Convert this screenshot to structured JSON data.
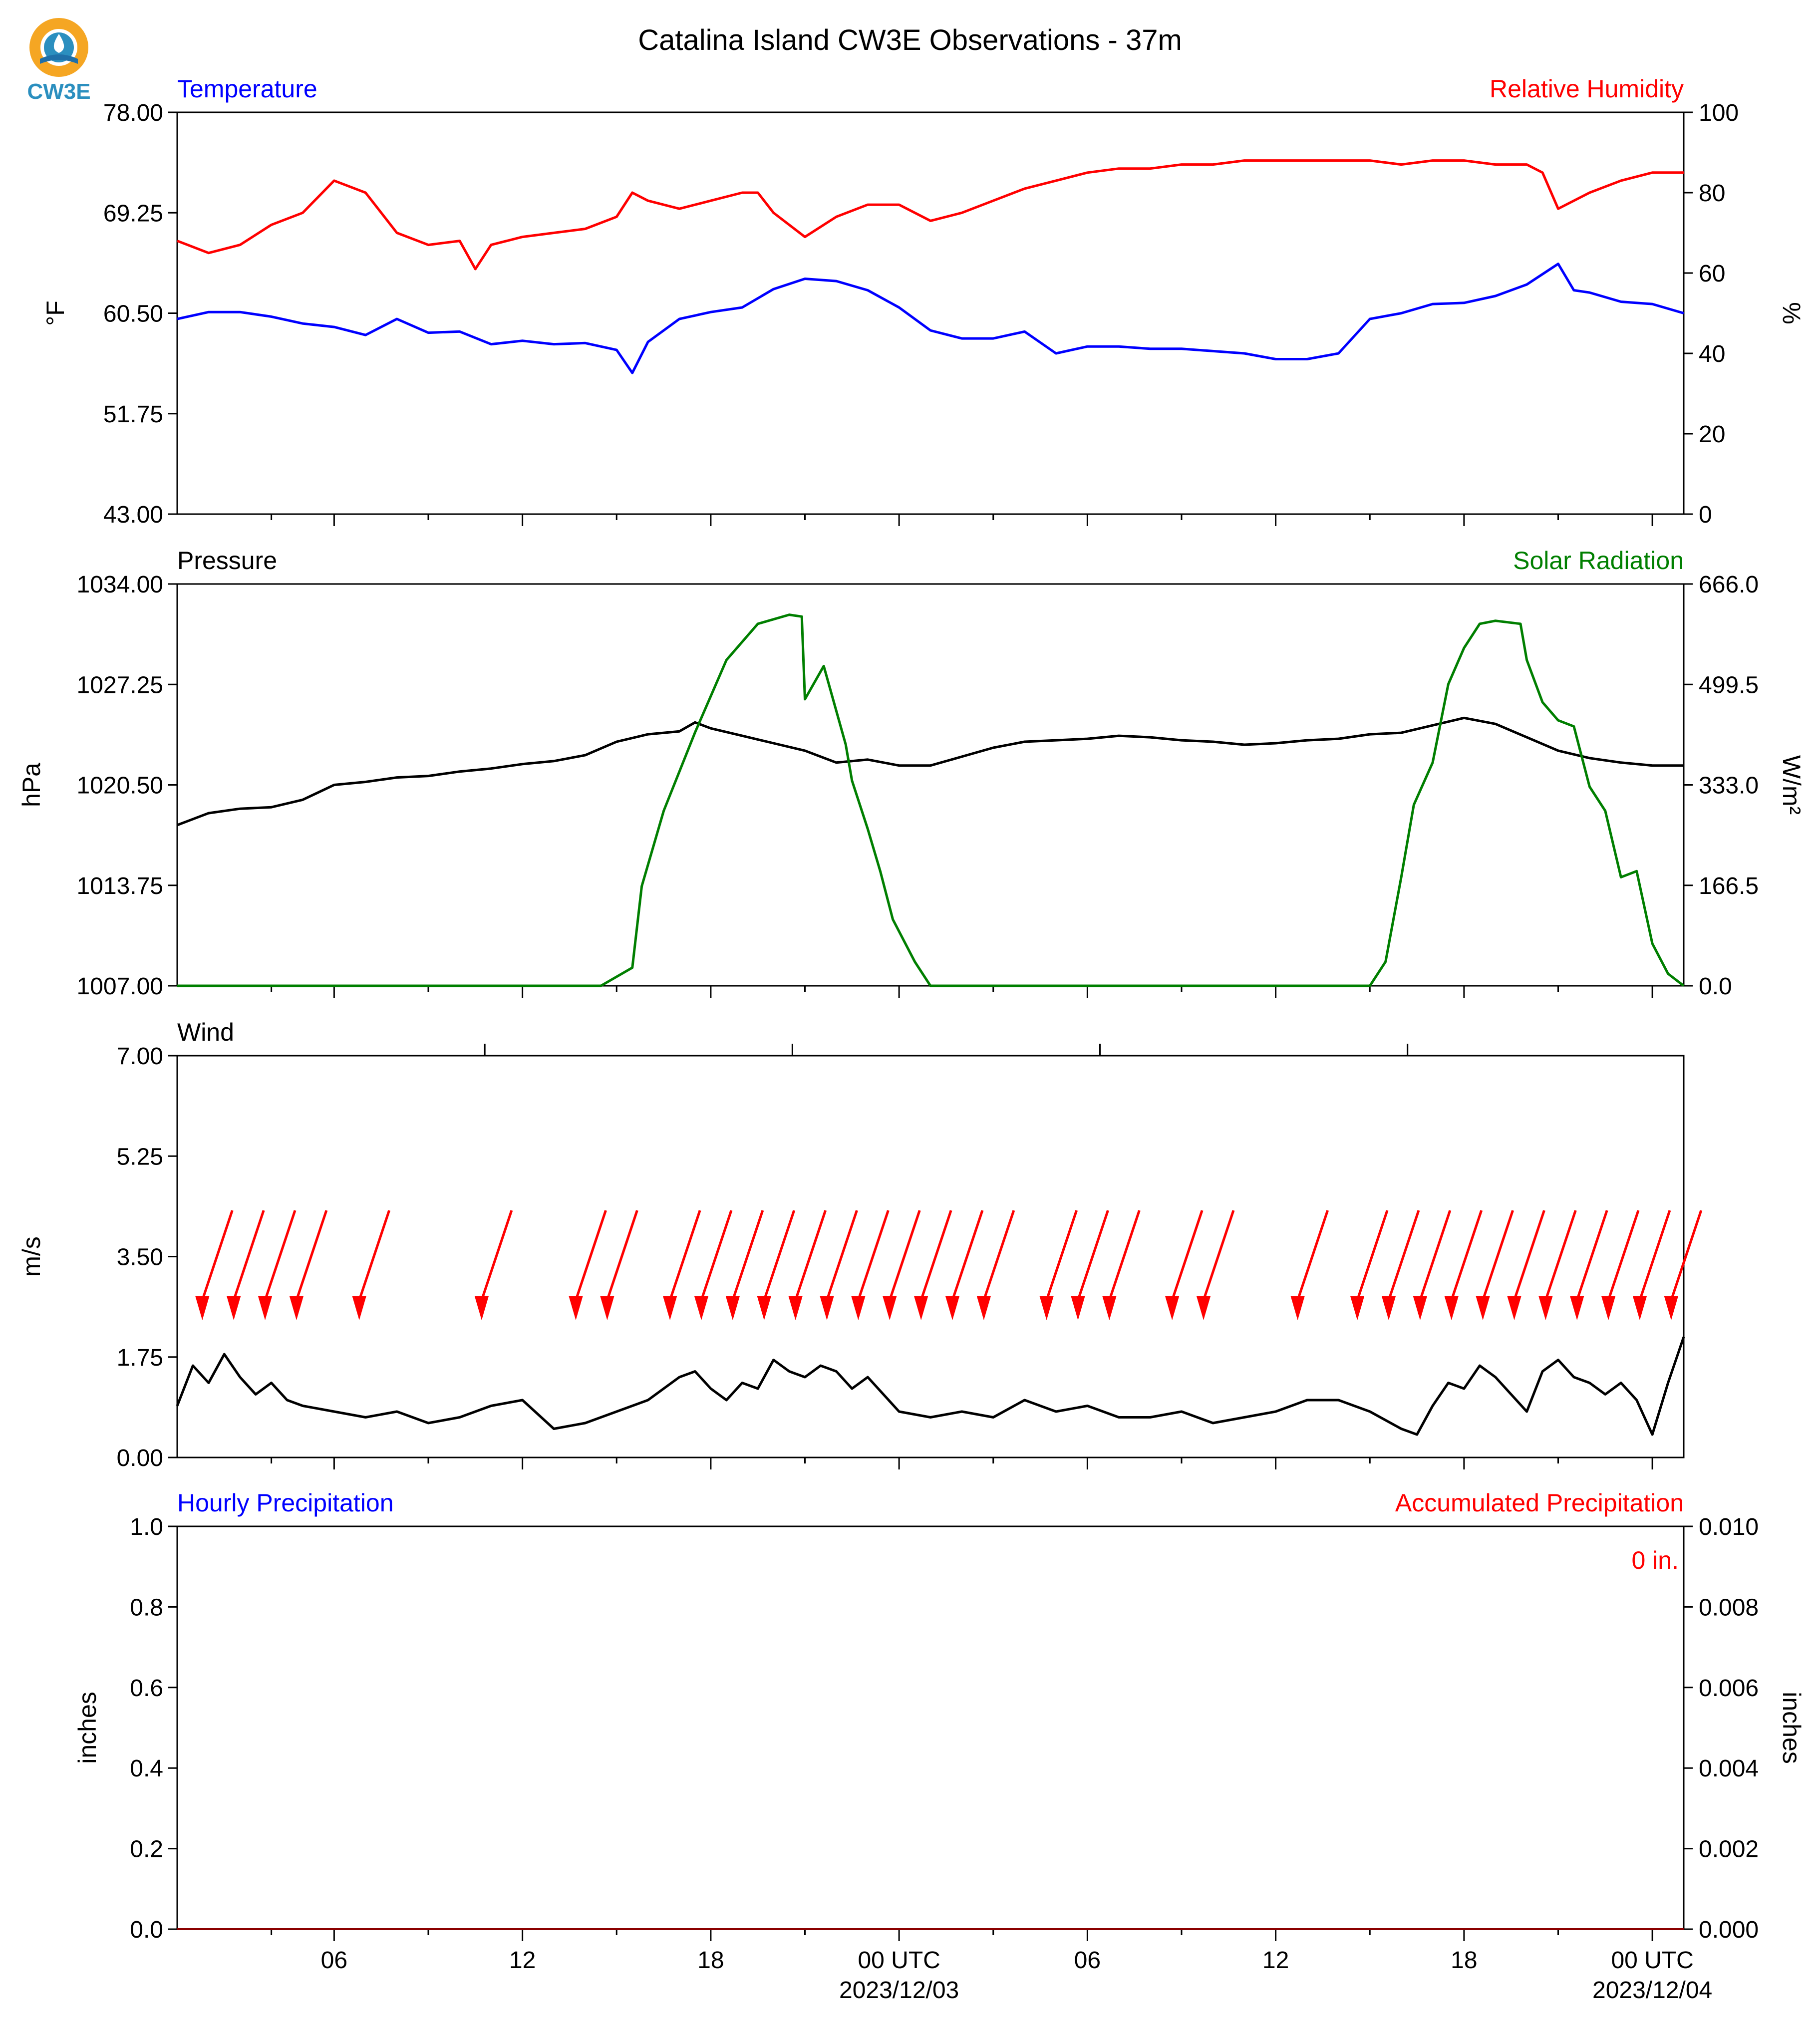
{
  "title": "Catalina Island CW3E Observations - 37m",
  "logo": {
    "text": "CW3E",
    "colors": {
      "ring": "#f5a623",
      "drop": "#1f8fbf",
      "wave": "#1f6fa8",
      "text": "#2b8fbf"
    }
  },
  "colors": {
    "blue": "#0000ff",
    "red": "#ff0000",
    "green": "#007f00",
    "black": "#000000",
    "accum": "#8b0000"
  },
  "x_axis": {
    "range_hours": [
      0,
      48
    ],
    "labels": [
      {
        "hour": 5,
        "line1": "06",
        "line2": ""
      },
      {
        "hour": 11,
        "line1": "12",
        "line2": ""
      },
      {
        "hour": 17,
        "line1": "18",
        "line2": ""
      },
      {
        "hour": 23,
        "line1": "00 UTC",
        "line2": "2023/12/03"
      },
      {
        "hour": 29,
        "line1": "06",
        "line2": ""
      },
      {
        "hour": 35,
        "line1": "12",
        "line2": ""
      },
      {
        "hour": 41,
        "line1": "18",
        "line2": ""
      },
      {
        "hour": 47,
        "line1": "00 UTC",
        "line2": "2023/12/04"
      }
    ],
    "minor_ticks_hours": [
      3,
      8,
      14,
      20,
      26,
      32,
      38,
      44
    ],
    "wind_top_ticks_hours": [
      9.8,
      19.6,
      29.4,
      39.2
    ]
  },
  "chart_data": [
    {
      "type": "line",
      "panel": "temperature_humidity",
      "left_title": "Temperature",
      "right_title": "Relative Humidity",
      "ylabel": "°F",
      "ylabel_right": "%",
      "ylim": [
        43,
        78
      ],
      "yticks": [
        "43.00",
        "51.75",
        "60.50",
        "69.25",
        "78.00"
      ],
      "ylim_right": [
        0,
        100
      ],
      "yticks_right": [
        "0",
        "20",
        "40",
        "60",
        "80",
        "100"
      ],
      "series": [
        {
          "axis": "left",
          "color": "#0000ff",
          "x": [
            0,
            1,
            2,
            3,
            4,
            5,
            6,
            7,
            8,
            9,
            10,
            11,
            12,
            13,
            14,
            14.5,
            15,
            16,
            17,
            18,
            19,
            20,
            21,
            22,
            23,
            24,
            25,
            26,
            27,
            28,
            29,
            30,
            31,
            32,
            33,
            34,
            35,
            36,
            37,
            38,
            39,
            40,
            41,
            42,
            43,
            44,
            44.5,
            45,
            46,
            47,
            48
          ],
          "y": [
            60.0,
            60.6,
            60.6,
            60.2,
            59.6,
            59.3,
            58.6,
            60.0,
            58.8,
            58.9,
            57.8,
            58.1,
            57.8,
            57.9,
            57.3,
            55.3,
            58.0,
            60.0,
            60.6,
            61.0,
            62.6,
            63.5,
            63.3,
            62.5,
            61.0,
            59.0,
            58.3,
            58.3,
            58.9,
            57.0,
            57.6,
            57.6,
            57.4,
            57.4,
            57.2,
            57.0,
            56.5,
            56.5,
            57.0,
            60.0,
            60.5,
            61.3,
            61.4,
            62.0,
            63.0,
            64.8,
            62.5,
            62.3,
            61.5,
            61.3,
            60.5
          ]
        },
        {
          "axis": "right",
          "color": "#ff0000",
          "x": [
            0,
            1,
            2,
            3,
            4,
            5,
            6,
            7,
            8,
            9,
            9.5,
            10,
            11,
            12,
            13,
            14,
            14.5,
            15,
            16,
            17,
            18,
            18.5,
            19,
            20,
            21,
            22,
            23,
            24,
            25,
            26,
            27,
            28,
            29,
            30,
            31,
            32,
            33,
            34,
            35,
            36,
            37,
            38,
            39,
            40,
            41,
            42,
            43,
            43.5,
            44,
            45,
            46,
            47,
            48
          ],
          "y": [
            68,
            65,
            67,
            72,
            75,
            83,
            80,
            70,
            67,
            68,
            61,
            67,
            69,
            70,
            71,
            74,
            80,
            78,
            76,
            78,
            80,
            80,
            75,
            69,
            74,
            77,
            77,
            73,
            75,
            78,
            81,
            83,
            85,
            86,
            86,
            87,
            87,
            88,
            88,
            88,
            88,
            88,
            87,
            88,
            88,
            87,
            87,
            85,
            76,
            80,
            83,
            85,
            85
          ]
        }
      ]
    },
    {
      "type": "line",
      "panel": "pressure_solar",
      "left_title": "Pressure",
      "right_title": "Solar Radiation",
      "ylabel": "hPa",
      "ylabel_right": "W/m²",
      "ylim": [
        1007,
        1034
      ],
      "yticks": [
        "1007.00",
        "1013.75",
        "1020.50",
        "1027.25",
        "1034.00"
      ],
      "ylim_right": [
        0,
        666
      ],
      "yticks_right": [
        "0.0",
        "166.5",
        "333.0",
        "499.5",
        "666.0"
      ],
      "series": [
        {
          "axis": "left",
          "color": "#000000",
          "x": [
            0,
            1,
            2,
            3,
            4,
            5,
            6,
            7,
            8,
            9,
            10,
            11,
            12,
            13,
            14,
            15,
            16,
            16.5,
            17,
            18,
            19,
            20,
            21,
            22,
            23,
            24,
            25,
            26,
            27,
            28,
            29,
            30,
            31,
            32,
            33,
            34,
            35,
            36,
            37,
            38,
            39,
            40,
            41,
            42,
            43,
            44,
            45,
            46,
            47,
            48
          ],
          "y": [
            1017.8,
            1018.6,
            1018.9,
            1019.0,
            1019.5,
            1020.5,
            1020.7,
            1021.0,
            1021.1,
            1021.4,
            1021.6,
            1021.9,
            1022.1,
            1022.5,
            1023.4,
            1023.9,
            1024.1,
            1024.7,
            1024.3,
            1023.8,
            1023.3,
            1022.8,
            1022.0,
            1022.2,
            1021.8,
            1021.8,
            1022.4,
            1023.0,
            1023.4,
            1023.5,
            1023.6,
            1023.8,
            1023.7,
            1023.5,
            1023.4,
            1023.2,
            1023.3,
            1023.5,
            1023.6,
            1023.9,
            1024.0,
            1024.5,
            1025.0,
            1024.6,
            1023.7,
            1022.8,
            1022.3,
            1022.0,
            1021.8,
            1021.8
          ]
        },
        {
          "axis": "right",
          "color": "#007f00",
          "x": [
            0,
            13.5,
            14.5,
            14.8,
            15.5,
            16.5,
            17.5,
            18.5,
            19.5,
            19.9,
            20.0,
            20.6,
            21.3,
            21.5,
            22.0,
            22.4,
            22.8,
            23.5,
            24.0,
            37.0,
            38.0,
            38.5,
            39.0,
            39.4,
            40.0,
            40.5,
            41.0,
            41.5,
            42.0,
            42.8,
            43.0,
            43.5,
            44.0,
            44.5,
            45.0,
            45.5,
            46.0,
            46.5,
            47.0,
            47.5,
            48.0
          ],
          "y": [
            0,
            0,
            30,
            165,
            290,
            420,
            540,
            600,
            615,
            612,
            475,
            530,
            400,
            340,
            260,
            190,
            110,
            40,
            0,
            0,
            0,
            40,
            180,
            300,
            370,
            500,
            560,
            600,
            605,
            600,
            540,
            470,
            440,
            430,
            330,
            290,
            180,
            190,
            70,
            20,
            0
          ]
        }
      ]
    },
    {
      "type": "line",
      "panel": "wind",
      "left_title": "Wind",
      "ylabel": "m/s",
      "ylim": [
        0,
        7
      ],
      "yticks": [
        "0.00",
        "1.75",
        "3.50",
        "5.25",
        "7.00"
      ],
      "series": [
        {
          "axis": "left",
          "color": "#000000",
          "x": [
            0,
            0.5,
            1,
            1.5,
            2,
            2.5,
            3,
            3.5,
            4,
            5,
            6,
            7,
            8,
            9,
            10,
            11,
            12,
            13,
            14,
            15,
            16,
            16.5,
            17,
            17.5,
            18,
            18.5,
            19,
            19.5,
            20,
            20.5,
            21,
            21.5,
            22,
            23,
            24,
            25,
            26,
            27,
            28,
            29,
            30,
            31,
            32,
            33,
            34,
            35,
            36,
            37,
            38,
            39,
            39.5,
            40,
            40.5,
            41,
            41.5,
            42,
            42.5,
            43,
            43.5,
            44,
            44.5,
            45,
            45.5,
            46,
            46.5,
            47,
            47.5,
            48
          ],
          "y": [
            0.9,
            1.6,
            1.3,
            1.8,
            1.4,
            1.1,
            1.3,
            1.0,
            0.9,
            0.8,
            0.7,
            0.8,
            0.6,
            0.7,
            0.9,
            1.0,
            0.5,
            0.6,
            0.8,
            1.0,
            1.4,
            1.5,
            1.2,
            1.0,
            1.3,
            1.2,
            1.7,
            1.5,
            1.4,
            1.6,
            1.5,
            1.2,
            1.4,
            0.8,
            0.7,
            0.8,
            0.7,
            1.0,
            0.8,
            0.9,
            0.7,
            0.7,
            0.8,
            0.6,
            0.7,
            0.8,
            1.0,
            1.0,
            0.8,
            0.5,
            0.4,
            0.9,
            1.3,
            1.2,
            1.6,
            1.4,
            1.1,
            0.8,
            1.5,
            1.7,
            1.4,
            1.3,
            1.1,
            1.3,
            1.0,
            0.4,
            1.3,
            2.1
          ]
        }
      ],
      "wind_barbs": {
        "color": "#ff0000",
        "speed_note": "direction arrows",
        "hours": [
          0.8,
          1.8,
          2.8,
          3.8,
          5.8,
          9.7,
          12.7,
          13.7,
          15.7,
          16.7,
          17.7,
          18.7,
          19.7,
          20.7,
          21.7,
          22.7,
          23.7,
          24.7,
          25.7,
          27.7,
          28.7,
          29.7,
          31.7,
          32.7,
          35.7,
          37.6,
          38.6,
          39.6,
          40.6,
          41.6,
          42.6,
          43.6,
          44.6,
          45.6,
          46.6,
          47.6
        ]
      }
    },
    {
      "type": "line",
      "panel": "precipitation",
      "left_title": "Hourly Precipitation",
      "right_title": "Accumulated Precipitation",
      "ylabel": "inches",
      "ylabel_right": "inches",
      "ylim": [
        0,
        1
      ],
      "yticks": [
        "0.0",
        "0.2",
        "0.4",
        "0.6",
        "0.8",
        "1.0"
      ],
      "ylim_right": [
        0,
        0.01
      ],
      "yticks_right": [
        "0.000",
        "0.002",
        "0.004",
        "0.006",
        "0.008",
        "0.010"
      ],
      "annotation": "0 in.",
      "series": [
        {
          "axis": "left",
          "color": "#0000ff",
          "x": [
            0,
            48
          ],
          "y": [
            0,
            0
          ]
        },
        {
          "axis": "right",
          "color": "#8b0000",
          "x": [
            0,
            48
          ],
          "y": [
            0,
            0
          ]
        }
      ]
    }
  ]
}
